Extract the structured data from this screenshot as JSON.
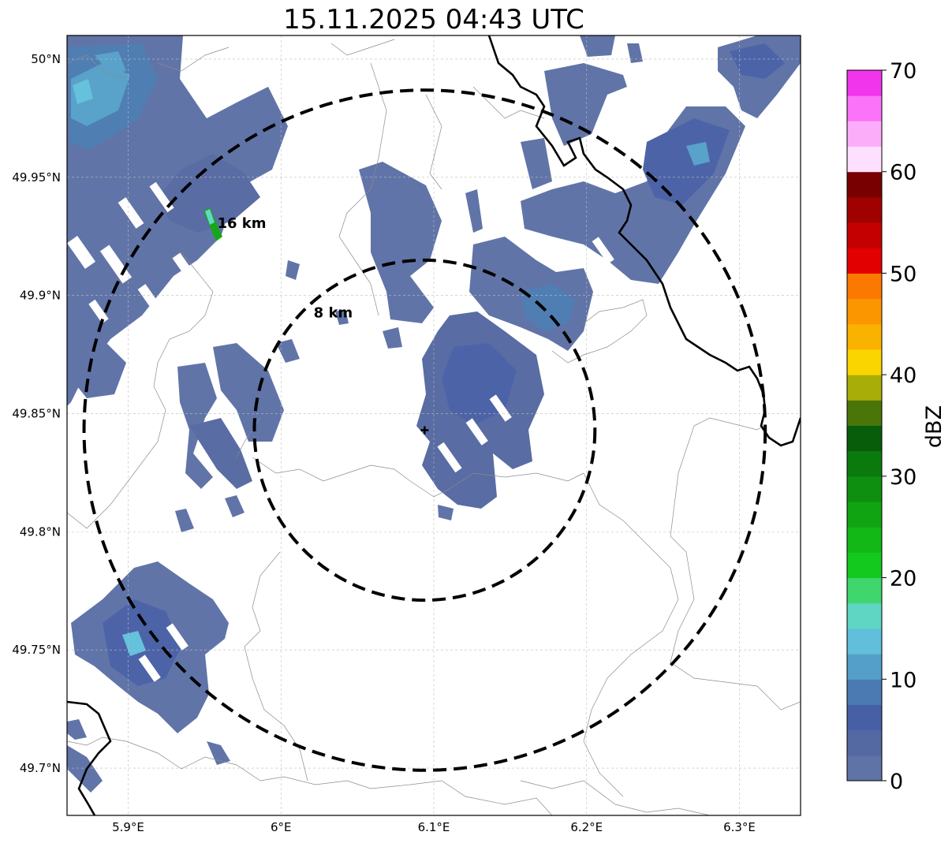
{
  "title": "15.11.2025 04:43 UTC",
  "map": {
    "lon_range": [
      5.86,
      6.34
    ],
    "lat_range": [
      49.68,
      50.01
    ],
    "x_ticks": [
      {
        "value": 5.9,
        "label": "5.9°E"
      },
      {
        "value": 6.0,
        "label": "6°E"
      },
      {
        "value": 6.1,
        "label": "6.1°E"
      },
      {
        "value": 6.2,
        "label": "6.2°E"
      },
      {
        "value": 6.3,
        "label": "6.3°E"
      }
    ],
    "y_ticks": [
      {
        "value": 50.0,
        "label": "50°N"
      },
      {
        "value": 49.95,
        "label": "49.95°N"
      },
      {
        "value": 49.9,
        "label": "49.9°N"
      },
      {
        "value": 49.85,
        "label": "49.85°N"
      },
      {
        "value": 49.8,
        "label": "49.8°N"
      },
      {
        "value": 49.75,
        "label": "49.75°N"
      },
      {
        "value": 49.7,
        "label": "49.7°N"
      }
    ],
    "radar_site": {
      "lon": 6.094,
      "lat": 49.843
    },
    "range_rings": [
      {
        "label": "8 km",
        "radius_km": 8
      },
      {
        "label": "16 km",
        "radius_km": 16
      }
    ],
    "gridlines": true
  },
  "colorbar": {
    "label": "dBZ",
    "ticks": [
      0,
      10,
      20,
      30,
      40,
      50,
      60,
      70
    ],
    "levels": [
      0,
      2.5,
      5,
      7.5,
      10,
      12.5,
      15,
      17.5,
      20,
      22.5,
      25,
      27.5,
      30,
      32.5,
      35,
      37.5,
      40,
      42.5,
      45,
      47.5,
      50,
      52.5,
      55,
      57.5,
      60,
      62.5,
      65,
      67.5,
      70
    ],
    "colors": [
      "#6073a6",
      "#5468a1",
      "#4760a5",
      "#4a7ab1",
      "#549fc9",
      "#61bfdb",
      "#5fd6c4",
      "#3fd66e",
      "#13c91d",
      "#11b816",
      "#10a412",
      "#0e8f10",
      "#0b7a0d",
      "#075d0a",
      "#4a7609",
      "#a8ae07",
      "#fbd500",
      "#fab200",
      "#fc9600",
      "#fb7900",
      "#e30000",
      "#c50000",
      "#a10000",
      "#780000",
      "#fddffe",
      "#fcadf9",
      "#fb73f8",
      "#f035ec"
    ]
  },
  "precip_areas": [
    {
      "name": "northwest band",
      "dbz": 5
    },
    {
      "name": "northwest core",
      "dbz": 12
    },
    {
      "name": "convective cell",
      "dbz": 24
    },
    {
      "name": "central cell",
      "dbz": 6
    },
    {
      "name": "northeast band",
      "dbz": 5
    },
    {
      "name": "southwest cluster",
      "dbz": 5
    }
  ]
}
